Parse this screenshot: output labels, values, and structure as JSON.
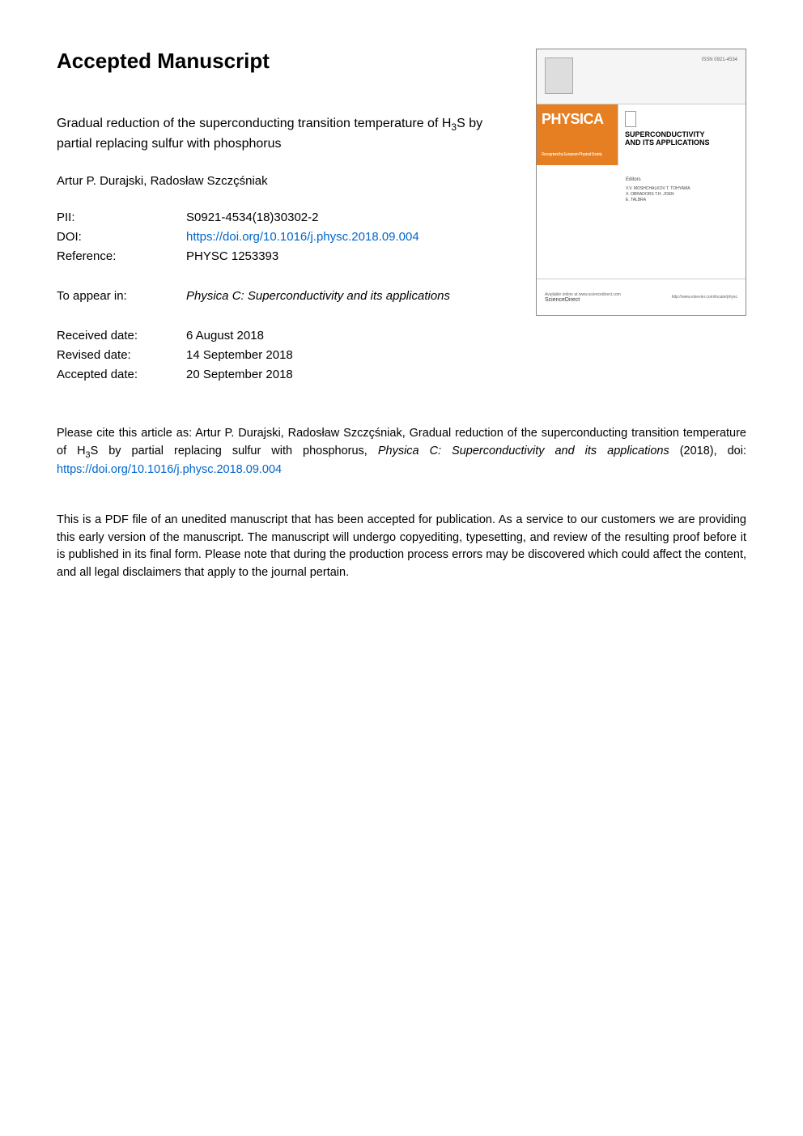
{
  "page": {
    "mainTitle": "Accepted Manuscript",
    "articleTitlePart1": "Gradual reduction of the superconducting transition temperature of H",
    "articleTitleSub": "3",
    "articleTitlePart2": "S by partial replacing sulfur with phosphorus",
    "authors": "Artur P. Durajski, Radosław Szczçśniak"
  },
  "meta": {
    "piiLabel": "PII:",
    "piiValue": "S0921-4534(18)30302-2",
    "doiLabel": "DOI:",
    "doiValue": "https://doi.org/10.1016/j.physc.2018.09.004",
    "referenceLabel": "Reference:",
    "referenceValue": "PHYSC 1253393",
    "appearLabel": "To appear in:",
    "appearValue": "Physica C: Superconductivity and its applications",
    "receivedLabel": "Received date:",
    "receivedValue": "6 August 2018",
    "revisedLabel": "Revised date:",
    "revisedValue": "14 September 2018",
    "acceptedLabel": "Accepted date:",
    "acceptedValue": "20 September 2018"
  },
  "citation": {
    "textPart1": "Please cite this article as: Artur P. Durajski, Radosław Szczçśniak, Gradual reduction of the superconducting transition temperature of H",
    "sub": "3",
    "textPart2": "S by partial replacing sulfur with phosphorus, ",
    "journal": "Physica C: Superconductivity and its applications",
    "textPart3": " (2018), doi: ",
    "doi": "https://doi.org/10.1016/j.physc.2018.09.004"
  },
  "disclaimer": "This is a PDF file of an unedited manuscript that has been accepted for publication. As a service to our customers we are providing this early version of the manuscript. The manuscript will undergo copyediting, typesetting, and review of the resulting proof before it is published in its final form. Please note that during the production process errors may be discovered which could affect the content, and all legal disclaimers that apply to the journal pertain.",
  "cover": {
    "physica": "PHYSICA",
    "physicaSubtitle": "Recognized by European Physical Society",
    "scTitle1": "SUPERCONDUCTIVITY",
    "scTitle2": "AND ITS APPLICATIONS",
    "editorsLabel": "Editors",
    "editorsNames": "V.V. MOSHCHALKOV   T. TOHYAMA\nX. OBRADORS   T.H. JOEN\nE. TALBRA",
    "scienceDirect": "ScienceDirect",
    "scienceDirectSub": "Available online at www.sciencedirect.com",
    "coverUrl": "http://www.elsevier.com/locate/physc",
    "issn": "ISSN 0921-4534"
  },
  "colors": {
    "linkColor": "#0066cc",
    "physicaOrange": "#e67e22",
    "textBlack": "#000000",
    "background": "#ffffff"
  }
}
